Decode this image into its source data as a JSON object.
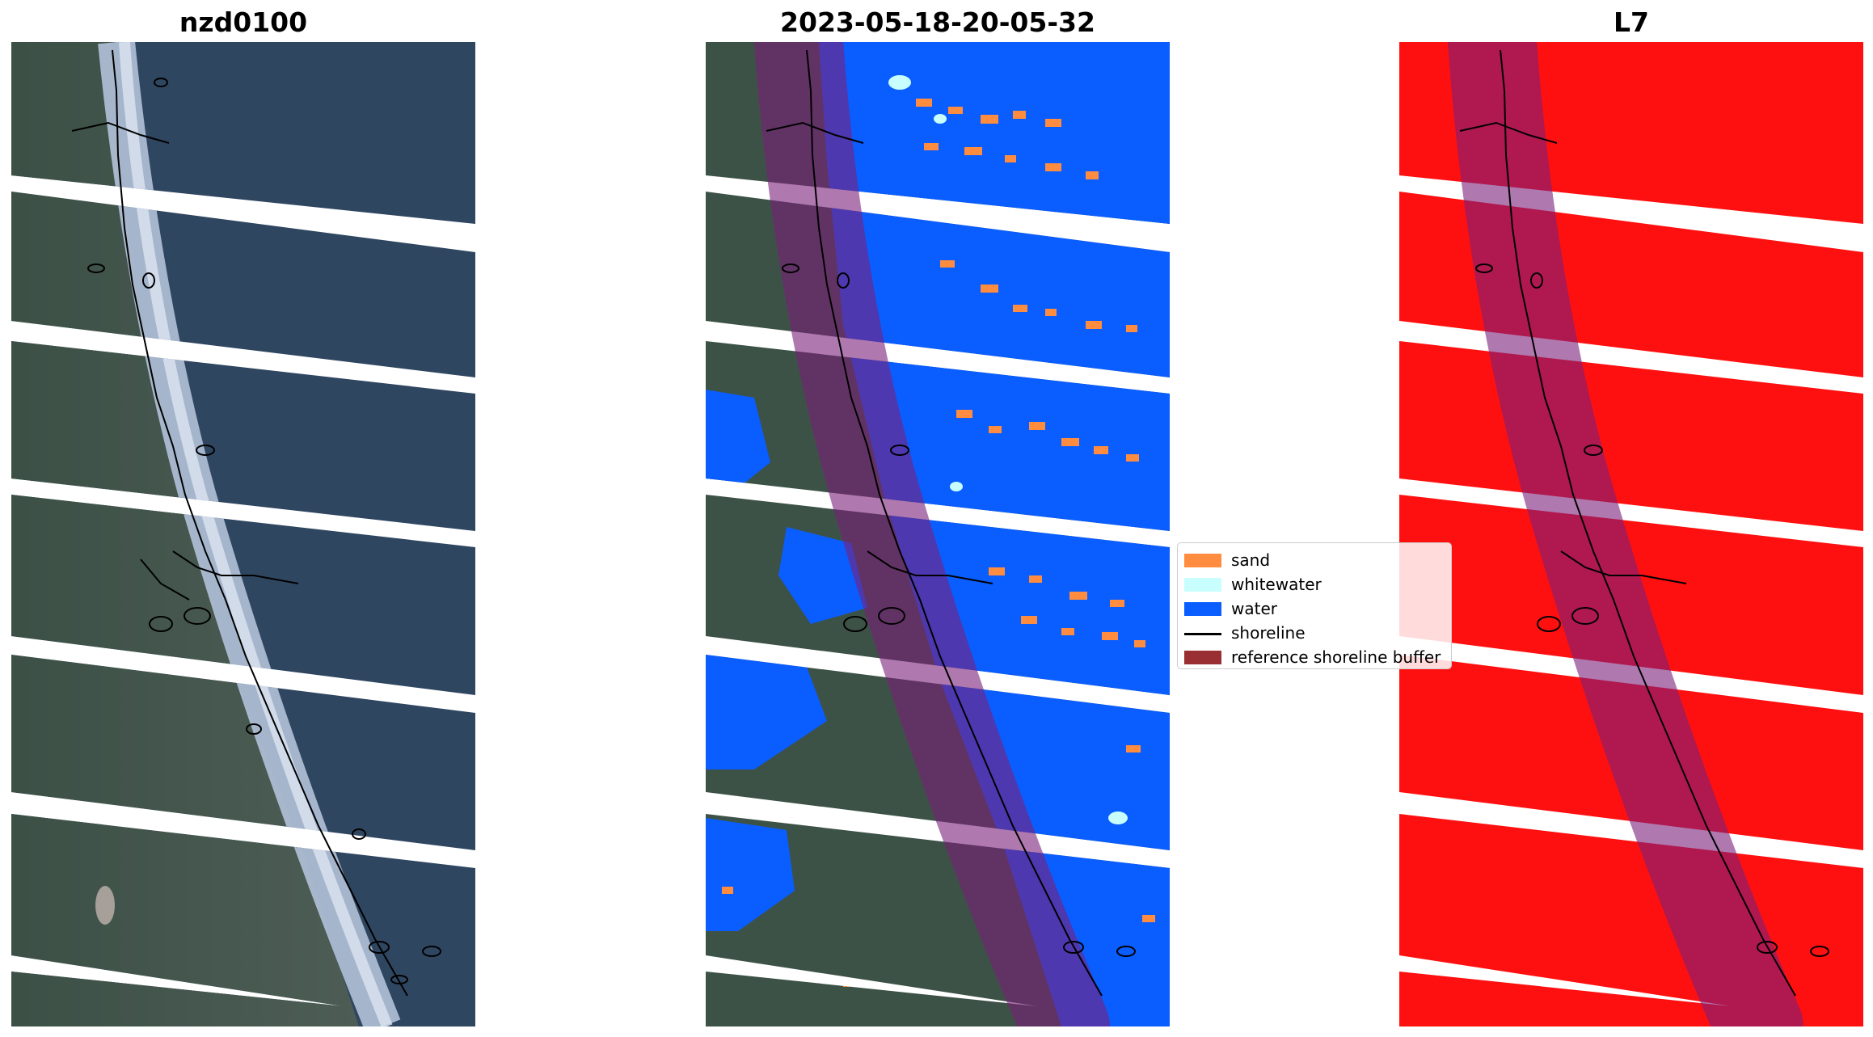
{
  "panels": [
    {
      "title": "nzd0100",
      "content": "rgb-composite"
    },
    {
      "title": "2023-05-18-20-05-32",
      "content": "classification"
    },
    {
      "title": "L7",
      "content": "cloud-mask"
    }
  ],
  "legend": {
    "items": [
      {
        "label": "sand",
        "color": "#ff8c3f",
        "type": "patch"
      },
      {
        "label": "whitewater",
        "color": "#c8fffe",
        "type": "patch"
      },
      {
        "label": "water",
        "color": "#0a5dff",
        "type": "patch"
      },
      {
        "label": "shoreline",
        "color": "#000000",
        "type": "line"
      },
      {
        "label": "reference shoreline buffer",
        "color": "#992e33",
        "type": "patch"
      }
    ]
  },
  "colors": {
    "land": "#3f5448",
    "ocean": "#2e4560",
    "surf": "#b6c4da",
    "water_class": "#0a5dff",
    "sand_class": "#ff8c3f",
    "whitewater_class": "#c8fffe",
    "mask_red": "#ff1010",
    "buffer": "#7a1f7a"
  }
}
